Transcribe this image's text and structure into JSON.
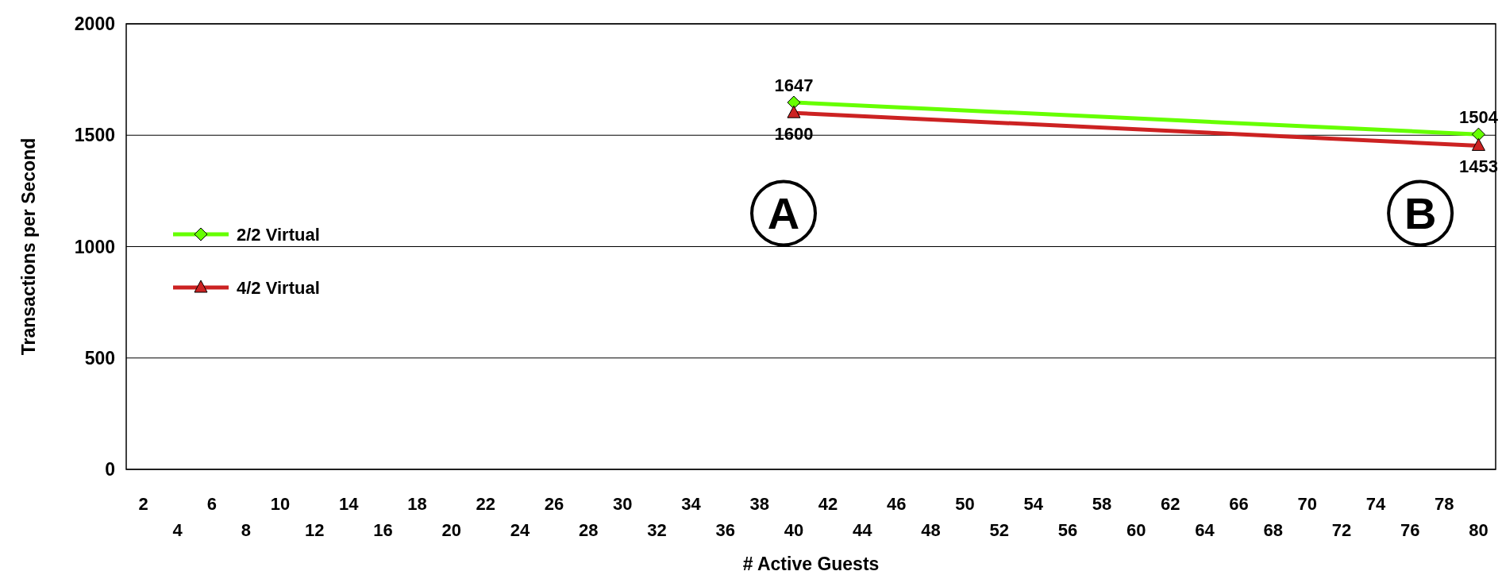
{
  "chart_data": {
    "type": "line",
    "xlabel": "# Active Guests",
    "ylabel": "Transactions per Second",
    "categories": [
      "2",
      "4",
      "6",
      "8",
      "10",
      "12",
      "14",
      "16",
      "18",
      "20",
      "22",
      "24",
      "26",
      "28",
      "30",
      "32",
      "34",
      "36",
      "38",
      "40",
      "42",
      "44",
      "46",
      "48",
      "50",
      "52",
      "54",
      "56",
      "58",
      "60",
      "62",
      "64",
      "66",
      "68",
      "70",
      "72",
      "74",
      "76",
      "78",
      "80"
    ],
    "series": [
      {
        "name": "2/2 Virtual",
        "color": "#66ff00",
        "marker": "diamond",
        "values": [
          null,
          null,
          null,
          null,
          null,
          null,
          null,
          null,
          null,
          null,
          null,
          null,
          null,
          null,
          null,
          null,
          null,
          null,
          null,
          1647,
          null,
          null,
          null,
          null,
          null,
          null,
          null,
          null,
          null,
          null,
          null,
          null,
          null,
          null,
          null,
          null,
          null,
          null,
          null,
          1504
        ]
      },
      {
        "name": "4/2 Virtual",
        "color": "#cc2222",
        "marker": "triangle",
        "values": [
          null,
          null,
          null,
          null,
          null,
          null,
          null,
          null,
          null,
          null,
          null,
          null,
          null,
          null,
          null,
          null,
          null,
          null,
          null,
          1600,
          null,
          null,
          null,
          null,
          null,
          null,
          null,
          null,
          null,
          null,
          null,
          null,
          null,
          null,
          null,
          null,
          null,
          null,
          null,
          1453
        ]
      }
    ],
    "ylim": [
      0,
      2000
    ],
    "yticks": [
      0,
      500,
      1000,
      1500,
      2000
    ],
    "grid": "y",
    "legend": "left",
    "data_labels": true,
    "annotations": [
      "A",
      "B"
    ]
  }
}
